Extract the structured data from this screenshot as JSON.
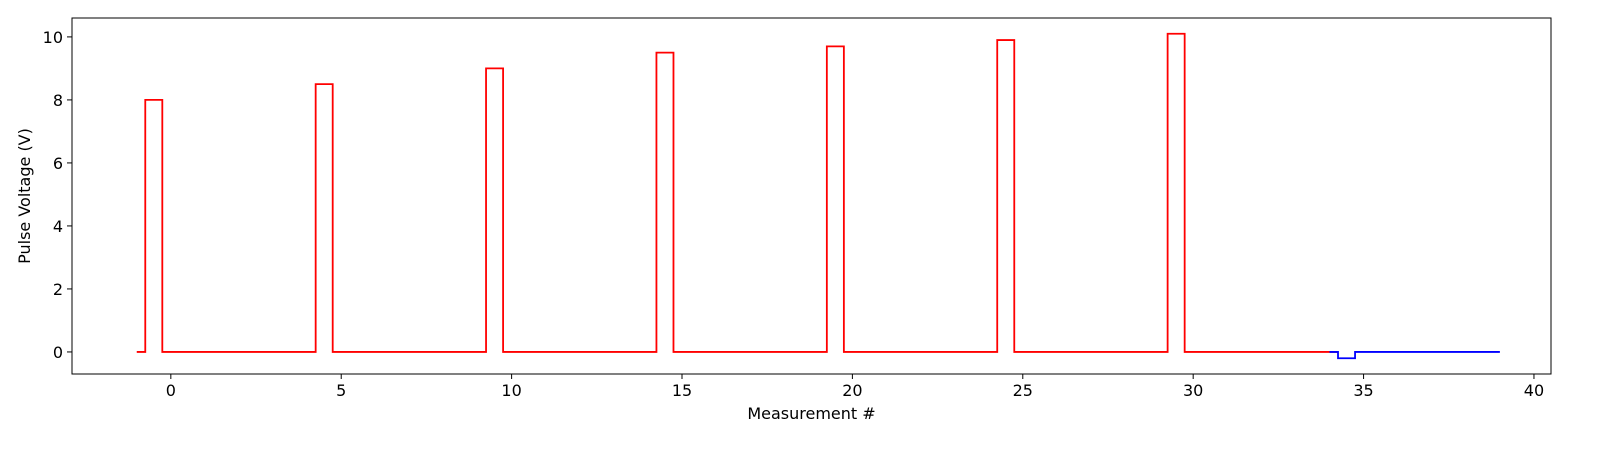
{
  "chart_data": {
    "type": "line",
    "title": "",
    "xlabel": "Measurement #",
    "ylabel": "Pulse Voltage (V)",
    "xlim": [
      -2.9,
      40.5
    ],
    "ylim": [
      -0.7,
      10.6
    ],
    "xticks": [
      0,
      5,
      10,
      15,
      20,
      25,
      30,
      35,
      40
    ],
    "yticks": [
      0,
      2,
      4,
      6,
      8,
      10
    ],
    "grid": false,
    "legend": "none",
    "series": [
      {
        "color": "#ff0000",
        "step": "post",
        "x": [
          -1,
          -0.75,
          -0.25,
          4.25,
          4.75,
          9.25,
          9.75,
          14.25,
          14.75,
          19.25,
          19.75,
          24.25,
          24.75,
          29.25,
          29.75,
          34.25
        ],
        "y": [
          0,
          8.0,
          0,
          8.5,
          0,
          9.0,
          0,
          9.5,
          0,
          9.7,
          0,
          9.9,
          0,
          10.1,
          0,
          0
        ]
      },
      {
        "color": "#0000ff",
        "step": "post",
        "x": [
          34,
          34.25,
          34.75,
          39
        ],
        "y": [
          0,
          -0.2,
          0,
          0
        ]
      }
    ]
  }
}
